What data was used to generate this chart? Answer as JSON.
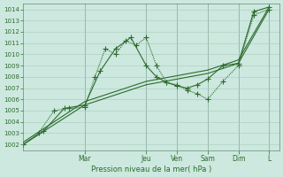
{
  "background_color": "#cce8df",
  "grid_color": "#aaccbb",
  "line_color": "#2d6b2d",
  "xlabel": "Pression niveau de la mer( hPa )",
  "ylim": [
    1001.5,
    1014.5
  ],
  "yticks": [
    1002,
    1003,
    1004,
    1005,
    1006,
    1007,
    1008,
    1009,
    1010,
    1011,
    1012,
    1013,
    1014
  ],
  "day_labels": [
    "Mar",
    "Jeu",
    "Ven",
    "Sam",
    "Dim",
    "L"
  ],
  "day_positions": [
    24,
    48,
    60,
    72,
    84,
    96
  ],
  "xlim": [
    0,
    100
  ],
  "series": [
    {
      "x": [
        0,
        6,
        12,
        18,
        24,
        28,
        32,
        36,
        40,
        44,
        48,
        52,
        56,
        60,
        64,
        68,
        72,
        78,
        84,
        90,
        96
      ],
      "y": [
        1002,
        1003,
        1005,
        1005.2,
        1005.3,
        1008,
        1010.5,
        1010,
        1011.2,
        1010.8,
        1011.5,
        1009.0,
        1007.5,
        1007.3,
        1006.8,
        1006.5,
        1006.0,
        1007.6,
        1009.0,
        1013.5,
        1014.0
      ],
      "linestyle": "dotted",
      "marker": "+"
    },
    {
      "x": [
        0,
        8,
        16,
        24,
        30,
        36,
        42,
        48,
        52,
        56,
        60,
        64,
        68,
        72,
        78,
        84,
        90,
        96
      ],
      "y": [
        1002,
        1003.2,
        1005.2,
        1005.5,
        1008.5,
        1010.5,
        1011.5,
        1009.0,
        1008.0,
        1007.5,
        1007.2,
        1007.0,
        1007.3,
        1007.8,
        1009.0,
        1009.2,
        1013.8,
        1014.2
      ],
      "linestyle": "solid",
      "marker": "+"
    },
    {
      "x": [
        0,
        24,
        48,
        60,
        72,
        84,
        96
      ],
      "y": [
        1002,
        1005.5,
        1007.3,
        1007.8,
        1008.3,
        1009.2,
        1014.0
      ],
      "linestyle": "solid",
      "marker": null
    },
    {
      "x": [
        0,
        24,
        48,
        60,
        72,
        84,
        96
      ],
      "y": [
        1002.2,
        1005.8,
        1007.6,
        1008.1,
        1008.6,
        1009.5,
        1014.2
      ],
      "linestyle": "solid",
      "marker": null
    }
  ]
}
